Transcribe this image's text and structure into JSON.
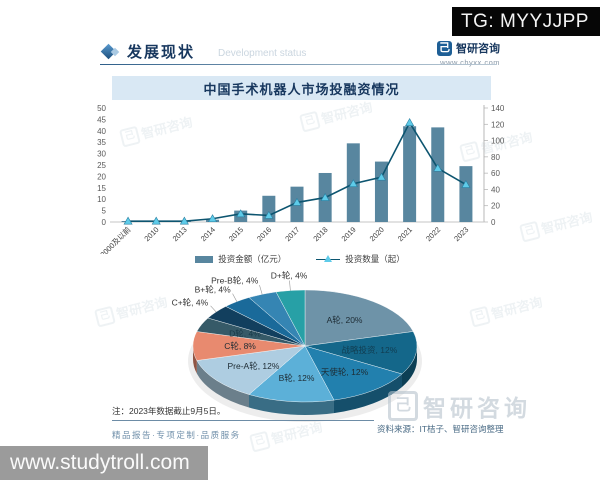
{
  "overlay": {
    "tg_badge": "TG: MYYJJPP",
    "site_watermark": "www.studytroll.com"
  },
  "header": {
    "section_title": "发展现状",
    "section_subtitle": "Development status",
    "brand": {
      "name": "智研咨询",
      "glyph": "己",
      "url": "www.chyxx.com"
    }
  },
  "chart_title": "中国手术机器人市场投融资情况",
  "chart_data": [
    {
      "type": "bar+line",
      "title": "中国手术机器人市场投融资情况",
      "categories": [
        "2000及以前",
        "2010",
        "2013",
        "2014",
        "2015",
        "2016",
        "2017",
        "2018",
        "2019",
        "2020",
        "2021",
        "2022",
        "2023"
      ],
      "series": [
        {
          "name": "投资金额（亿元）",
          "kind": "bar",
          "axis": "left",
          "values": [
            0.2,
            0.2,
            0.3,
            1,
            5,
            11.5,
            15.5,
            21.5,
            34.5,
            26.5,
            42,
            41.5,
            24.5
          ]
        },
        {
          "name": "投资数量（起）",
          "kind": "line",
          "axis": "right",
          "values": [
            1,
            1,
            1,
            4,
            10,
            8,
            24,
            30,
            47,
            55,
            122,
            66,
            46
          ]
        }
      ],
      "left_axis": {
        "min": 0,
        "max": 50,
        "step": 5
      },
      "right_axis": {
        "min": 0,
        "max": 140,
        "step": 20
      },
      "grid": false,
      "legend_position": "bottom",
      "colors": {
        "bar": "#58869f",
        "line": "#0d5570",
        "marker": "#5ecbe9"
      }
    },
    {
      "type": "pie",
      "style": "3d",
      "slices": [
        {
          "label": "A轮",
          "pct": 20,
          "color": "#6e93a8",
          "inside": true
        },
        {
          "label": "战略投资",
          "pct": 12,
          "color": "#14678a",
          "inside": true,
          "faint": true
        },
        {
          "label": "天使轮",
          "pct": 12,
          "color": "#2280ae",
          "inside": true
        },
        {
          "label": "B轮",
          "pct": 12,
          "color": "#5cb0d8",
          "inside": true
        },
        {
          "label": "Pre-A轮",
          "pct": 12,
          "color": "#aecde1",
          "inside": true
        },
        {
          "label": "C轮",
          "pct": 8,
          "color": "#e88a6f",
          "inside": true
        },
        {
          "label": "D轮",
          "pct": 4,
          "color": "#365a68",
          "inside": true,
          "faint": true
        },
        {
          "label": "C+轮",
          "pct": 4,
          "color": "#123f5e",
          "inside": false
        },
        {
          "label": "B+轮",
          "pct": 4,
          "color": "#1a6a9a",
          "inside": false
        },
        {
          "label": "Pre-B轮",
          "pct": 4,
          "color": "#3585b3",
          "inside": false
        },
        {
          "label": "D+轮",
          "pct": 4,
          "color": "#27a0a6",
          "inside": false
        }
      ]
    }
  ],
  "footer": {
    "note": "注：2023年数据截止9月5日。",
    "services": "精品报告·专项定制·品质服务",
    "source": "资料来源：IT桔子、智研咨询整理",
    "brand_watermark": "智研咨询"
  }
}
